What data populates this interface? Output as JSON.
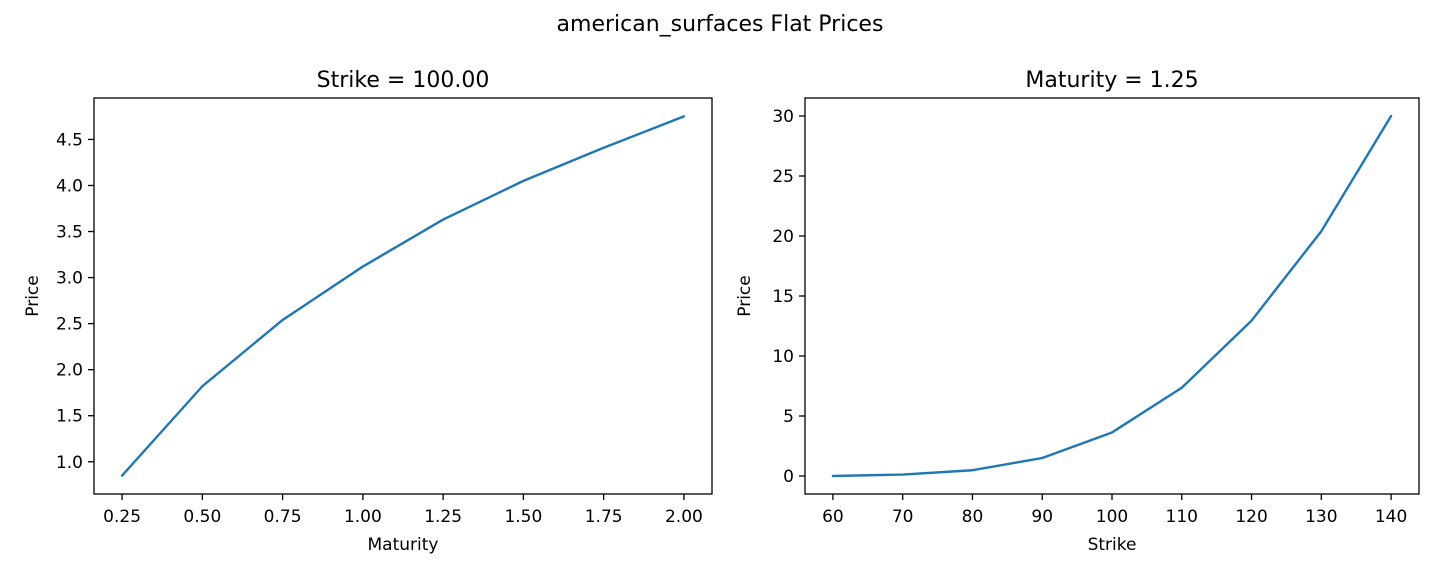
{
  "figure": {
    "suptitle": "american_surfaces Flat Prices"
  },
  "chart_data": [
    {
      "type": "line",
      "title": "Strike = 100.00",
      "xlabel": "Maturity",
      "ylabel": "Price",
      "xlim": [
        0.1625,
        2.0875
      ],
      "ylim": [
        0.65,
        4.95
      ],
      "xticks": [
        0.25,
        0.5,
        0.75,
        1.0,
        1.25,
        1.5,
        1.75,
        2.0
      ],
      "xtick_labels": [
        "0.25",
        "0.50",
        "0.75",
        "1.00",
        "1.25",
        "1.50",
        "1.75",
        "2.00"
      ],
      "yticks": [
        1.0,
        1.5,
        2.0,
        2.5,
        3.0,
        3.5,
        4.0,
        4.5
      ],
      "ytick_labels": [
        "1.0",
        "1.5",
        "2.0",
        "2.5",
        "3.0",
        "3.5",
        "4.0",
        "4.5"
      ],
      "grid": false,
      "series": [
        {
          "color": "#1f77b4",
          "x": [
            0.25,
            0.5,
            0.75,
            1.0,
            1.25,
            1.5,
            1.75,
            2.0
          ],
          "y": [
            0.85,
            1.82,
            2.54,
            3.12,
            3.63,
            4.05,
            4.41,
            4.75
          ]
        }
      ]
    },
    {
      "type": "line",
      "title": "Maturity = 1.25",
      "xlabel": "Strike",
      "ylabel": "Price",
      "xlim": [
        56,
        144
      ],
      "ylim": [
        -1.5,
        31.5
      ],
      "xticks": [
        60,
        70,
        80,
        90,
        100,
        110,
        120,
        130,
        140
      ],
      "xtick_labels": [
        "60",
        "70",
        "80",
        "90",
        "100",
        "110",
        "120",
        "130",
        "140"
      ],
      "yticks": [
        0,
        5,
        10,
        15,
        20,
        25,
        30
      ],
      "ytick_labels": [
        "0",
        "5",
        "10",
        "15",
        "20",
        "25",
        "30"
      ],
      "grid": false,
      "series": [
        {
          "color": "#1f77b4",
          "x": [
            60,
            70,
            80,
            90,
            100,
            110,
            120,
            130,
            140
          ],
          "y": [
            0.0,
            0.12,
            0.48,
            1.5,
            3.63,
            7.35,
            12.95,
            20.4,
            30.0
          ]
        }
      ]
    }
  ]
}
